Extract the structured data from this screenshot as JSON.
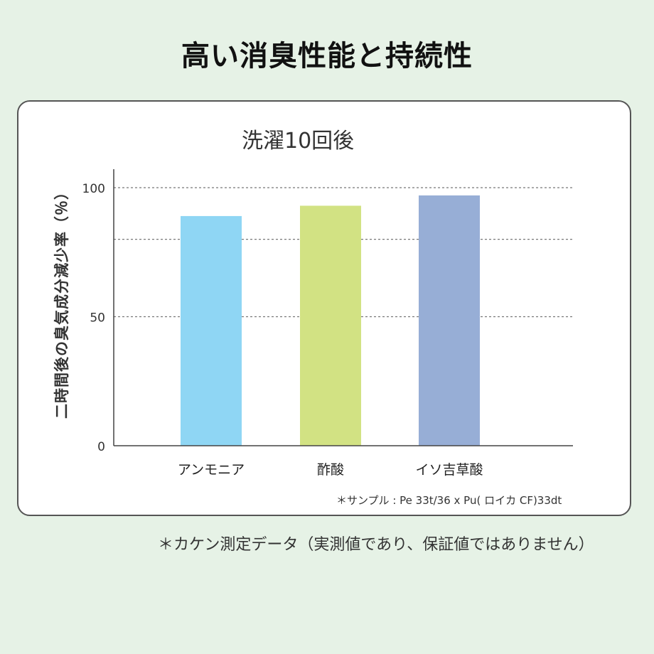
{
  "page_title": "高い消臭性能と持続性",
  "footnote": "＊カケン測定データ（実測値であり、保証値ではありません）",
  "chart_data": {
    "type": "bar",
    "title": "洗濯10回後",
    "ylabel": "二時間後の臭気成分減少率（％）",
    "xlabel": "",
    "categories": [
      "アンモニア",
      "酢酸",
      "イソ吉草酸"
    ],
    "values": [
      89,
      93,
      97
    ],
    "colors": [
      "#8fd6f4",
      "#d2e283",
      "#97aed6"
    ],
    "yticks": [
      0,
      50,
      100
    ],
    "ylim": [
      0,
      107
    ],
    "grid_lines": [
      50,
      80,
      100
    ],
    "grid": true,
    "legend": "none",
    "note": "＊サンプル : Pe 33t/36 x Pu( ロイカ CF)33dt"
  }
}
